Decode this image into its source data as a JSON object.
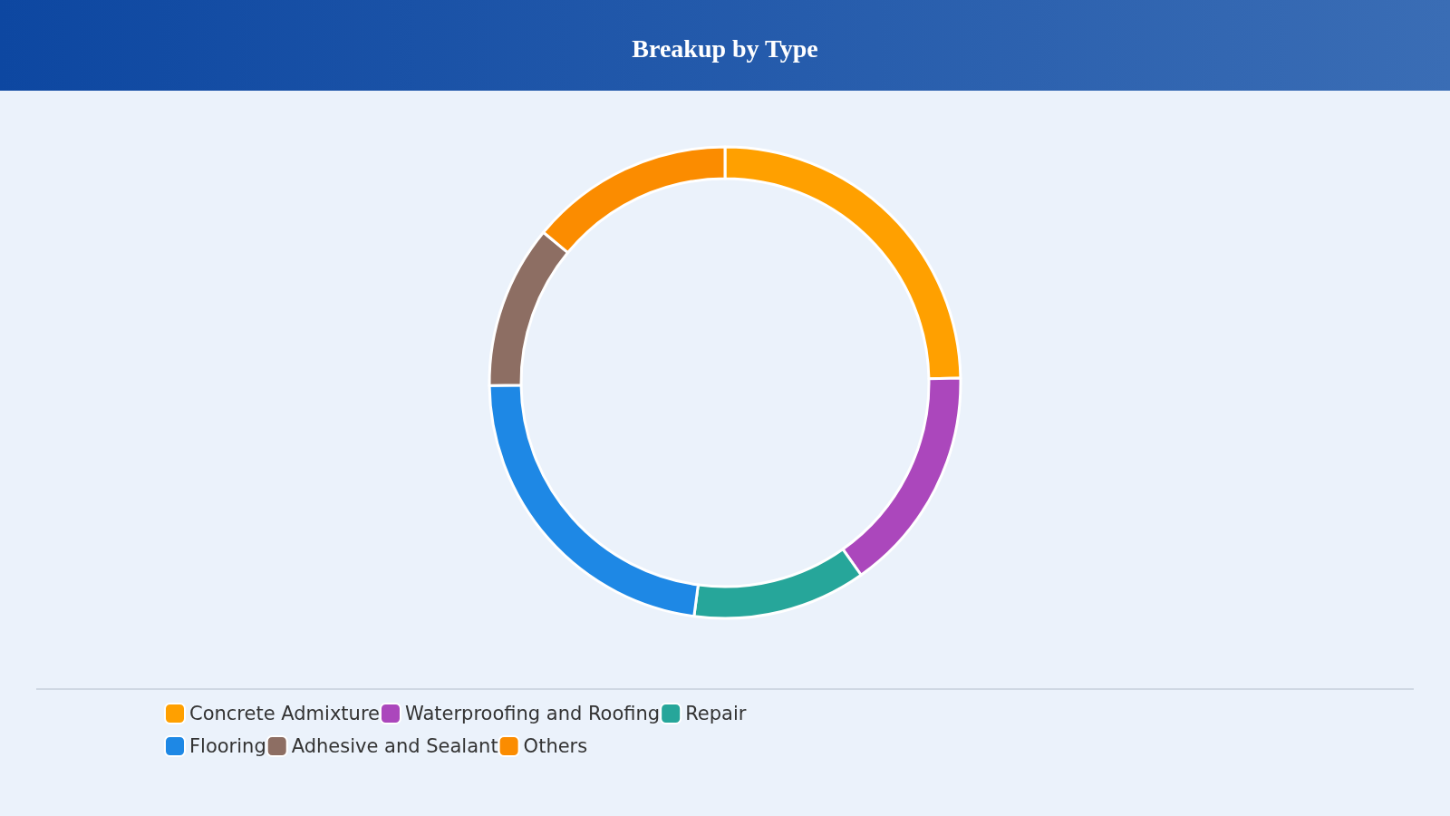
{
  "chart_data": {
    "type": "donut",
    "title": "Breakup by Type",
    "categories": [
      "Concrete Admixture",
      "Waterproofing and Roofing",
      "Repair",
      "Flooring",
      "Adhesive and Sealant",
      "Others"
    ],
    "values": [
      24.7,
      15.5,
      11.9,
      22.7,
      11.2,
      14.0
    ],
    "colors": [
      "#ffa000",
      "#ab47bc",
      "#26a69a",
      "#1e88e5",
      "#8d6e63",
      "#fb8c00"
    ],
    "legend": "bottom"
  }
}
